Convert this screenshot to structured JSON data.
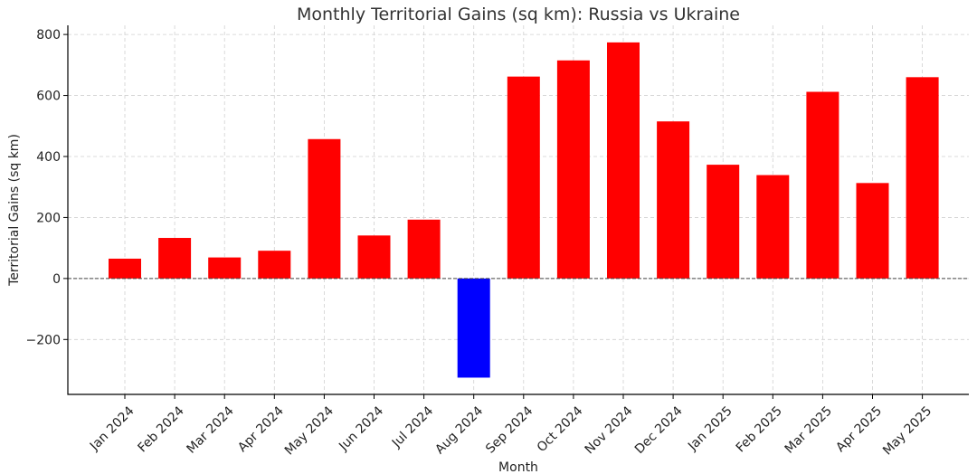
{
  "chart_data": {
    "type": "bar",
    "title": "Monthly Territorial Gains (sq km): Russia vs Ukraine",
    "xlabel": "Month",
    "ylabel": "Territorial Gains (sq km)",
    "ylim": [
      -380,
      830
    ],
    "yticks": [
      -200,
      0,
      200,
      400,
      600,
      800
    ],
    "ytick_labels": [
      "−200",
      "0",
      "200",
      "400",
      "600",
      "800"
    ],
    "grid": true,
    "categories": [
      "Jan 2024",
      "Feb 2024",
      "Mar 2024",
      "Apr 2024",
      "May 2024",
      "Jun 2024",
      "Jul 2024",
      "Aug 2024",
      "Sep 2024",
      "Oct 2024",
      "Nov 2024",
      "Dec 2024",
      "Jan 2025",
      "Feb 2025",
      "Mar 2025",
      "Apr 2025",
      "May 2025"
    ],
    "values": [
      65,
      133,
      69,
      91,
      457,
      141,
      193,
      -325,
      662,
      715,
      774,
      515,
      373,
      339,
      612,
      313,
      660
    ],
    "colors": {
      "positive": "#ff0000",
      "negative": "#0000ff",
      "zero_line": "#444444"
    }
  }
}
